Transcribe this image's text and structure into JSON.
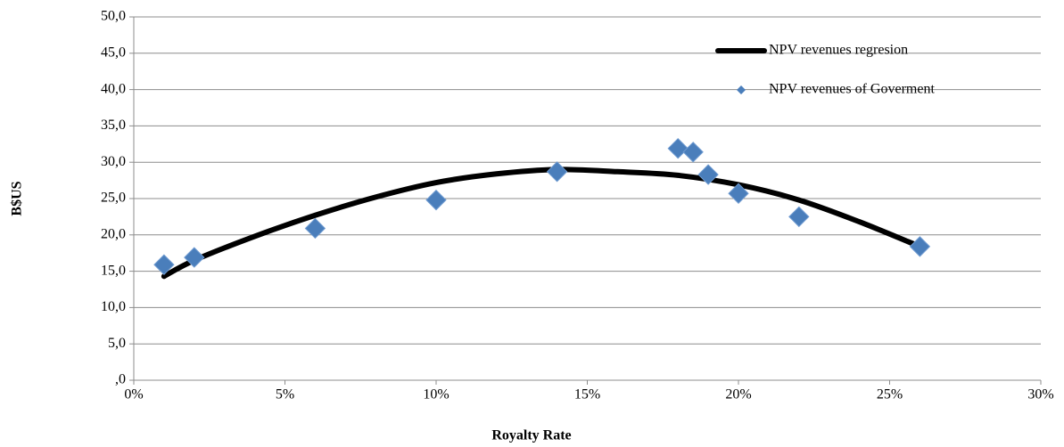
{
  "chart_data": {
    "type": "scatter",
    "x_label": "Royalty Rate",
    "y_label": "B$US",
    "xlim": [
      0,
      30
    ],
    "xticks": [
      {
        "value": 0,
        "label": "0%"
      },
      {
        "value": 5,
        "label": "5%"
      },
      {
        "value": 10,
        "label": "10%"
      },
      {
        "value": 15,
        "label": "15%"
      },
      {
        "value": 20,
        "label": "20%"
      },
      {
        "value": 25,
        "label": "25%"
      },
      {
        "value": 30,
        "label": "30%"
      }
    ],
    "ylim": [
      0,
      50
    ],
    "yticks": [
      {
        "value": 0,
        "label": ",0"
      },
      {
        "value": 5,
        "label": "5,0"
      },
      {
        "value": 10,
        "label": "10,0"
      },
      {
        "value": 15,
        "label": "15,0"
      },
      {
        "value": 20,
        "label": "20,0"
      },
      {
        "value": 25,
        "label": "25,0"
      },
      {
        "value": 30,
        "label": "30,0"
      },
      {
        "value": 35,
        "label": "35,0"
      },
      {
        "value": 40,
        "label": "40,0"
      },
      {
        "value": 45,
        "label": "45,0"
      },
      {
        "value": 50,
        "label": "50,0"
      }
    ],
    "grid": true,
    "legend": "upper right",
    "series": [
      {
        "name": "NPV revenues regresion",
        "style": "line",
        "color": "#000000",
        "x": [
          1,
          2,
          4,
          6,
          8,
          10,
          12,
          14,
          16,
          18,
          20,
          22,
          24,
          26
        ],
        "values": [
          14.3,
          16.5,
          19.8,
          22.7,
          25.2,
          27.2,
          28.4,
          29.0,
          28.7,
          28.2,
          26.9,
          24.8,
          21.8,
          18.4
        ]
      },
      {
        "name": "NPV revenues of Goverment",
        "style": "marker",
        "color": "#4a7ebb",
        "x": [
          1,
          2,
          6,
          10,
          14,
          18,
          18.5,
          19,
          20,
          22,
          26
        ],
        "values": [
          15.9,
          16.9,
          20.9,
          24.8,
          28.7,
          31.9,
          31.4,
          28.3,
          25.7,
          22.5,
          18.4
        ]
      }
    ]
  }
}
